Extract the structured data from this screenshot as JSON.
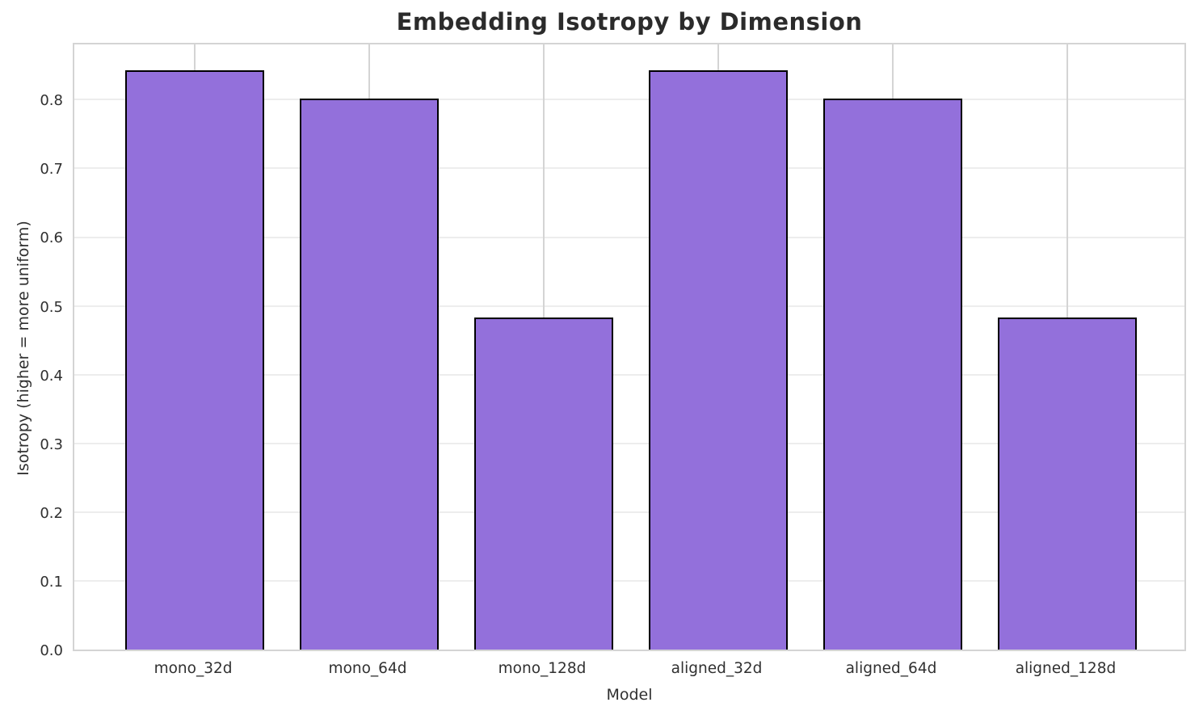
{
  "chart_data": {
    "type": "bar",
    "title": "Embedding Isotropy by Dimension",
    "xlabel": "Model",
    "ylabel": "Isotropy (higher = more uniform)",
    "categories": [
      "mono_32d",
      "mono_64d",
      "mono_128d",
      "aligned_32d",
      "aligned_64d",
      "aligned_128d"
    ],
    "values": [
      0.843,
      0.802,
      0.483,
      0.843,
      0.802,
      0.483
    ],
    "ylim": [
      0,
      0.885
    ],
    "yticks": [
      0.0,
      0.1,
      0.2,
      0.3,
      0.4,
      0.5,
      0.6,
      0.7,
      0.8
    ],
    "ytick_labels": [
      "0.0",
      "0.1",
      "0.2",
      "0.3",
      "0.4",
      "0.5",
      "0.6",
      "0.7",
      "0.8"
    ],
    "grid": true,
    "legend_position": "none",
    "colors": {
      "bar_fill": "#9370DB",
      "bar_edge": "#000000",
      "hgrid": "#ededed",
      "vgrid": "#d4d4d4",
      "spine": "#d4d4d4",
      "title_text": "#2b2b2b",
      "tick_text": "#303030"
    }
  }
}
